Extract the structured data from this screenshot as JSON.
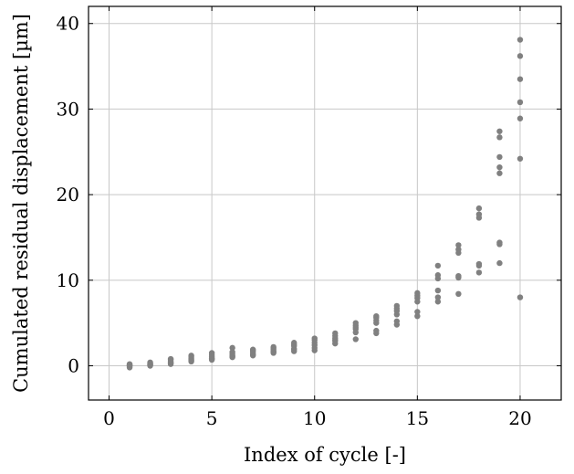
{
  "chart_data": {
    "type": "scatter",
    "xlabel": "Index of cycle [-]",
    "ylabel": "Cumulated residual displacement [µm]",
    "xlim": [
      -1,
      22
    ],
    "ylim": [
      -4,
      42
    ],
    "xticks": [
      0,
      5,
      10,
      15,
      20
    ],
    "yticks": [
      0,
      10,
      20,
      30,
      40
    ],
    "grid": true,
    "marker_color": "#808080",
    "series": [
      {
        "points": [
          [
            1,
            0.0
          ],
          [
            1,
            0.1
          ],
          [
            1,
            -0.1
          ],
          [
            1,
            0.2
          ],
          [
            1,
            -0.2
          ],
          [
            1,
            0.05
          ],
          [
            2,
            0.0
          ],
          [
            2,
            0.2
          ],
          [
            2,
            0.3
          ],
          [
            2,
            0.1
          ],
          [
            2,
            0.4
          ],
          [
            2,
            0.15
          ],
          [
            3,
            0.2
          ],
          [
            3,
            0.4
          ],
          [
            3,
            0.5
          ],
          [
            3,
            0.7
          ],
          [
            3,
            0.8
          ],
          [
            3,
            0.3
          ],
          [
            4,
            0.5
          ],
          [
            4,
            0.7
          ],
          [
            4,
            0.9
          ],
          [
            4,
            1.1
          ],
          [
            4,
            1.2
          ],
          [
            4,
            0.6
          ],
          [
            5,
            0.7
          ],
          [
            5,
            0.9
          ],
          [
            5,
            1.1
          ],
          [
            5,
            1.3
          ],
          [
            5,
            1.5
          ],
          [
            5,
            0.8
          ],
          [
            6,
            1.0
          ],
          [
            6,
            1.2
          ],
          [
            6,
            1.4
          ],
          [
            6,
            2.1
          ],
          [
            6,
            1.6
          ],
          [
            6,
            1.1
          ],
          [
            7,
            1.2
          ],
          [
            7,
            1.4
          ],
          [
            7,
            1.6
          ],
          [
            7,
            1.8
          ],
          [
            7,
            1.9
          ],
          [
            7,
            1.3
          ],
          [
            8,
            1.5
          ],
          [
            8,
            1.7
          ],
          [
            8,
            1.9
          ],
          [
            8,
            2.1
          ],
          [
            8,
            2.2
          ],
          [
            8,
            1.6
          ],
          [
            9,
            1.7
          ],
          [
            9,
            2.0
          ],
          [
            9,
            2.3
          ],
          [
            9,
            2.5
          ],
          [
            9,
            2.7
          ],
          [
            9,
            1.9
          ],
          [
            10,
            1.8
          ],
          [
            10,
            2.1
          ],
          [
            10,
            2.4
          ],
          [
            10,
            2.7
          ],
          [
            10,
            3.0
          ],
          [
            10,
            3.2
          ],
          [
            11,
            2.6
          ],
          [
            11,
            2.9
          ],
          [
            11,
            3.2
          ],
          [
            11,
            3.5
          ],
          [
            11,
            3.8
          ],
          [
            11,
            3.0
          ],
          [
            12,
            3.1
          ],
          [
            12,
            3.9
          ],
          [
            12,
            4.3
          ],
          [
            12,
            4.7
          ],
          [
            12,
            5.0
          ],
          [
            12,
            4.5
          ],
          [
            13,
            3.8
          ],
          [
            13,
            4.1
          ],
          [
            13,
            5.0
          ],
          [
            13,
            5.3
          ],
          [
            13,
            5.6
          ],
          [
            13,
            5.8
          ],
          [
            14,
            4.8
          ],
          [
            14,
            5.2
          ],
          [
            14,
            6.0
          ],
          [
            14,
            6.4
          ],
          [
            14,
            6.7
          ],
          [
            14,
            7.0
          ],
          [
            15,
            5.8
          ],
          [
            15,
            6.3
          ],
          [
            15,
            7.5
          ],
          [
            15,
            7.9
          ],
          [
            15,
            8.2
          ],
          [
            15,
            8.5
          ],
          [
            16,
            7.5
          ],
          [
            16,
            8.0
          ],
          [
            16,
            8.8
          ],
          [
            16,
            10.2
          ],
          [
            16,
            10.6
          ],
          [
            16,
            11.7
          ],
          [
            17,
            8.4
          ],
          [
            17,
            10.3
          ],
          [
            17,
            10.5
          ],
          [
            17,
            13.2
          ],
          [
            17,
            13.6
          ],
          [
            17,
            14.1
          ],
          [
            18,
            10.9
          ],
          [
            18,
            11.7
          ],
          [
            18,
            11.9
          ],
          [
            18,
            17.3
          ],
          [
            18,
            17.7
          ],
          [
            18,
            18.4
          ],
          [
            19,
            12.0
          ],
          [
            19,
            14.2
          ],
          [
            19,
            14.4
          ],
          [
            19,
            22.5
          ],
          [
            19,
            23.2
          ],
          [
            19,
            24.4
          ],
          [
            19,
            26.7
          ],
          [
            19,
            27.4
          ],
          [
            20,
            8.0
          ],
          [
            20,
            24.2
          ],
          [
            20,
            28.9
          ],
          [
            20,
            30.8
          ],
          [
            20,
            33.5
          ],
          [
            20,
            36.2
          ],
          [
            20,
            38.1
          ]
        ]
      }
    ]
  }
}
